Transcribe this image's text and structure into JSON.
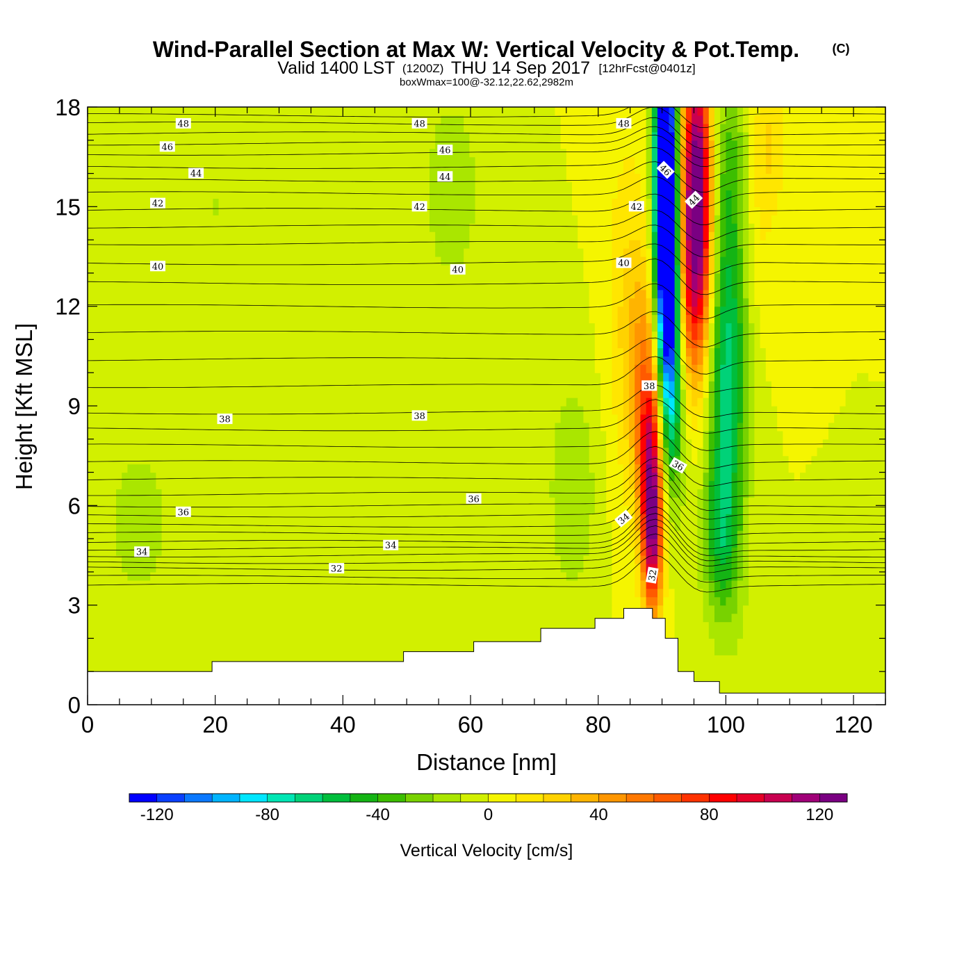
{
  "figure": {
    "title": "Wind-Parallel Section at Max W: Vertical Velocity & Pot.Temp.",
    "copyright_mark": "(C)",
    "valid_prefix": "Valid 1400 LST",
    "valid_utc": "(1200Z)",
    "valid_date": "THU 14 Sep 2017",
    "forecast": "[12hrFcst@0401z]",
    "box_info": "boxWmax=100@-32.12,22.62,2982m"
  },
  "chart_data": {
    "type": "heatmap",
    "xlabel": "Distance [nm]",
    "ylabel": "Height [Kft MSL]",
    "xlim": [
      0,
      125
    ],
    "ylim": [
      0,
      18
    ],
    "x_ticks": [
      0,
      20,
      40,
      60,
      80,
      100,
      120
    ],
    "y_ticks": [
      0,
      3,
      6,
      9,
      12,
      15,
      18
    ],
    "x_tick_labels": [
      "0",
      "20",
      "40",
      "60",
      "80",
      "100",
      "120"
    ],
    "y_tick_labels": [
      "0",
      "3",
      "6",
      "9",
      "12",
      "15",
      "18"
    ],
    "field": {
      "name": "vertical_velocity",
      "units": "cm/s",
      "blobs": [
        {
          "x": 90.5,
          "y": 17.0,
          "sx": 1.2,
          "sy": 4.0,
          "amp": -120
        },
        {
          "x": 90.8,
          "y": 14.0,
          "sx": 1.3,
          "sy": 3.0,
          "amp": -90
        },
        {
          "x": 91.2,
          "y": 11.0,
          "sx": 1.3,
          "sy": 2.5,
          "amp": -55
        },
        {
          "x": 92.0,
          "y": 8.5,
          "sx": 1.5,
          "sy": 2.0,
          "amp": -30
        },
        {
          "x": 95.5,
          "y": 16.5,
          "sx": 1.6,
          "sy": 3.0,
          "amp": 95
        },
        {
          "x": 95.2,
          "y": 14.0,
          "sx": 1.8,
          "sy": 2.5,
          "amp": 60
        },
        {
          "x": 94.8,
          "y": 11.5,
          "sx": 2.0,
          "sy": 2.5,
          "amp": 30
        },
        {
          "x": 88.5,
          "y": 5.0,
          "sx": 1.1,
          "sy": 1.8,
          "amp": 95
        },
        {
          "x": 88.2,
          "y": 7.5,
          "sx": 1.4,
          "sy": 2.0,
          "amp": 65
        },
        {
          "x": 87.5,
          "y": 10.0,
          "sx": 2.0,
          "sy": 2.5,
          "amp": 35
        },
        {
          "x": 84.5,
          "y": 12.0,
          "sx": 2.5,
          "sy": 4.0,
          "amp": 18
        },
        {
          "x": 100.0,
          "y": 8.0,
          "sx": 2.2,
          "sy": 3.5,
          "amp": -45
        },
        {
          "x": 100.5,
          "y": 12.0,
          "sx": 2.2,
          "sy": 3.0,
          "amp": -35
        },
        {
          "x": 99.0,
          "y": 5.0,
          "sx": 2.0,
          "sy": 1.5,
          "amp": -30
        },
        {
          "x": 101.0,
          "y": 16.5,
          "sx": 2.5,
          "sy": 2.0,
          "amp": -25
        },
        {
          "x": 76.0,
          "y": 6.5,
          "sx": 3.0,
          "sy": 2.5,
          "amp": -18
        },
        {
          "x": 104.5,
          "y": 15.0,
          "sx": 2.0,
          "sy": 2.5,
          "amp": 15
        },
        {
          "x": 107.0,
          "y": 17.0,
          "sx": 2.0,
          "sy": 1.5,
          "amp": 18
        },
        {
          "x": 57.0,
          "y": 15.5,
          "sx": 3.0,
          "sy": 2.0,
          "amp": -20
        },
        {
          "x": 8.0,
          "y": 5.5,
          "sx": 6.0,
          "sy": 3.0,
          "amp": -12
        },
        {
          "x": 20.0,
          "y": 15.0,
          "sx": 4.0,
          "sy": 5.0,
          "amp": -10
        },
        {
          "x": 40.0,
          "y": 14.0,
          "sx": 2.5,
          "sy": 4.0,
          "amp": -10
        },
        {
          "x": 60.0,
          "y": 3.2,
          "sx": 4.0,
          "sy": 0.8,
          "amp": -10
        },
        {
          "x": 110.0,
          "y": 2.0,
          "sx": 5.0,
          "sy": 1.0,
          "amp": -10
        }
      ]
    },
    "terrain": {
      "x": [
        0,
        19.5,
        19.5,
        49.5,
        49.5,
        60.5,
        60.5,
        71.0,
        71.0,
        79.5,
        79.5,
        84.0,
        84.0,
        88.5,
        88.5,
        90.5,
        90.5,
        92.5,
        92.5,
        95.0,
        95.0,
        99.0,
        99.0,
        125
      ],
      "y": [
        1.0,
        1.0,
        1.3,
        1.3,
        1.6,
        1.6,
        1.9,
        1.9,
        2.3,
        2.3,
        2.6,
        2.6,
        2.9,
        2.9,
        2.6,
        2.6,
        2.0,
        2.0,
        1.0,
        1.0,
        0.7,
        0.7,
        0.35,
        0.35
      ]
    },
    "theta_contour_labels": [
      {
        "text": "48",
        "x": 15.0,
        "y": 17.5,
        "angle": 0
      },
      {
        "text": "48",
        "x": 52.0,
        "y": 17.5,
        "angle": 0
      },
      {
        "text": "48",
        "x": 84.0,
        "y": 17.5,
        "angle": 0
      },
      {
        "text": "46",
        "x": 12.5,
        "y": 16.8,
        "angle": 0
      },
      {
        "text": "46",
        "x": 56.0,
        "y": 16.7,
        "angle": 0
      },
      {
        "text": "46",
        "x": 90.5,
        "y": 16.1,
        "angle": 45
      },
      {
        "text": "44",
        "x": 17.0,
        "y": 16.0,
        "angle": 0
      },
      {
        "text": "44",
        "x": 56.0,
        "y": 15.9,
        "angle": 0
      },
      {
        "text": "44",
        "x": 95.0,
        "y": 15.2,
        "angle": -45
      },
      {
        "text": "42",
        "x": 11.0,
        "y": 15.1,
        "angle": 0
      },
      {
        "text": "42",
        "x": 52.0,
        "y": 15.0,
        "angle": 0
      },
      {
        "text": "42",
        "x": 86.0,
        "y": 15.0,
        "angle": 0
      },
      {
        "text": "40",
        "x": 11.0,
        "y": 13.2,
        "angle": 0
      },
      {
        "text": "40",
        "x": 58.0,
        "y": 13.1,
        "angle": 0
      },
      {
        "text": "40",
        "x": 84.0,
        "y": 13.3,
        "angle": 0
      },
      {
        "text": "38",
        "x": 21.5,
        "y": 8.6,
        "angle": 0
      },
      {
        "text": "38",
        "x": 52.0,
        "y": 8.7,
        "angle": 0
      },
      {
        "text": "38",
        "x": 88.0,
        "y": 9.6,
        "angle": 0
      },
      {
        "text": "36",
        "x": 15.0,
        "y": 5.8,
        "angle": 0
      },
      {
        "text": "36",
        "x": 60.5,
        "y": 6.2,
        "angle": 0
      },
      {
        "text": "36",
        "x": 92.5,
        "y": 7.2,
        "angle": 30
      },
      {
        "text": "34",
        "x": 8.5,
        "y": 4.6,
        "angle": 0
      },
      {
        "text": "34",
        "x": 47.5,
        "y": 4.8,
        "angle": 0
      },
      {
        "text": "34",
        "x": 84.0,
        "y": 5.6,
        "angle": -40
      },
      {
        "text": "32",
        "x": 39.0,
        "y": 4.1,
        "angle": 0
      },
      {
        "text": "32",
        "x": 88.5,
        "y": 3.9,
        "angle": -80
      }
    ]
  },
  "colorbar": {
    "label": "Vertical Velocity [cm/s]",
    "min": -130,
    "max": 130,
    "step": 10,
    "tick_values": [
      -120,
      -80,
      -40,
      0,
      40,
      80,
      120
    ],
    "tick_labels": [
      "-120",
      "-80",
      "-40",
      "0",
      "40",
      "80",
      "120"
    ],
    "colors": [
      "#0000ff",
      "#0a40ff",
      "#0a78ff",
      "#00b4ff",
      "#00e6ff",
      "#00e6b4",
      "#00d278",
      "#00be3c",
      "#14b414",
      "#3cbe00",
      "#78d200",
      "#aae600",
      "#d2f000",
      "#f5f500",
      "#ffe600",
      "#ffd200",
      "#ffb400",
      "#ff9600",
      "#ff7800",
      "#ff5a00",
      "#ff3200",
      "#ff0000",
      "#e60028",
      "#c80050",
      "#a00078",
      "#7a0082"
    ]
  }
}
